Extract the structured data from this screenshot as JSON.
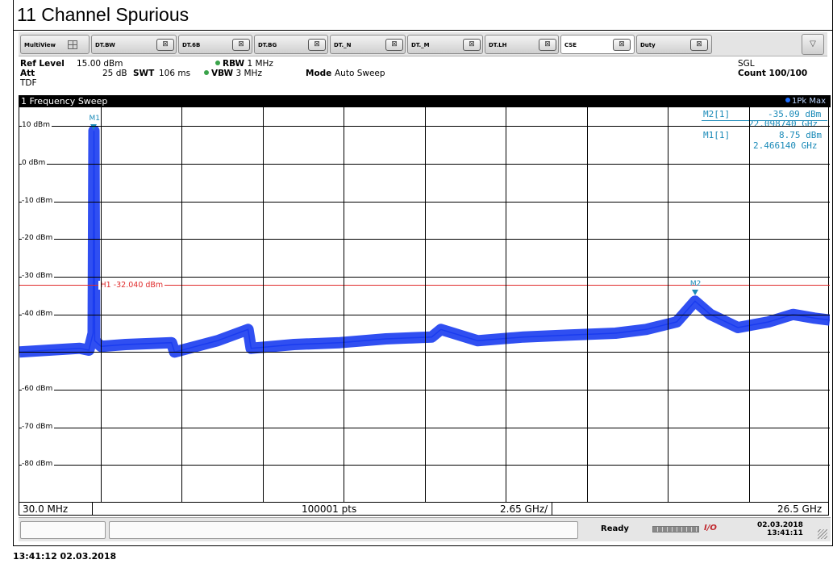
{
  "document": {
    "title": "11 Channel Spurious"
  },
  "tabs": [
    {
      "label": "MultiView",
      "active": false
    },
    {
      "label": "DT.BW",
      "active": false
    },
    {
      "label": "DT.6B",
      "active": false
    },
    {
      "label": "DT.BG",
      "active": false
    },
    {
      "label": "DT._N",
      "active": false
    },
    {
      "label": "DT._M",
      "active": false
    },
    {
      "label": "DT.LH",
      "active": false
    },
    {
      "label": "CSE",
      "active": true
    },
    {
      "label": "Duty",
      "active": false
    }
  ],
  "icons": {
    "tab_close": "close-x-icon",
    "dropdown": "chevron-down-icon",
    "multiview": "grid-layout-icon"
  },
  "glyphs": {
    "close": "⊠",
    "dropdown": "▽"
  },
  "settings": {
    "ref_level_label": "Ref Level",
    "ref_level_value": "15.00 dBm",
    "att_label": "Att",
    "att_value": "25 dB",
    "tdf_label": "TDF",
    "rbw_label": "RBW",
    "rbw_value": "1 MHz",
    "swt_label": "SWT",
    "swt_value": "106 ms",
    "vbw_label": "VBW",
    "vbw_value": "3 MHz",
    "mode_label": "Mode",
    "mode_value": "Auto Sweep",
    "sgl_label": "SGL",
    "count_label": "Count",
    "count_value": "100/100"
  },
  "window": {
    "title": "1 Frequency Sweep",
    "trace_label": "1Pk Max"
  },
  "markers": {
    "m2_label": "M2[1]",
    "m2_level": "-35.09 dBm",
    "m2_freq": "22.098740 GHz",
    "m1_label": "M1[1]",
    "m1_level": "8.75 dBm",
    "m1_freq": "2.466140 GHz",
    "m1_tag": "M1",
    "m2_tag": "M2"
  },
  "limit_line": {
    "label": "H1 -32.040 dBm",
    "level_dbm": -32.04,
    "color": "#e02b2b"
  },
  "chart_data": {
    "type": "line",
    "x_unit": "GHz",
    "y_unit": "dBm",
    "xlim": [
      0.03,
      26.5
    ],
    "ylim": [
      -90,
      15
    ],
    "y_ticks": [
      10,
      0,
      -10,
      -20,
      -30,
      -40,
      -50,
      -60,
      -70,
      -80
    ],
    "y_tick_labels": [
      "10 dBm",
      "0 dBm",
      "-10 dBm",
      "-20 dBm",
      "-30 dBm",
      "-40 dBm",
      "",
      "-60 dBm",
      "-70 dBm",
      "-80 dBm"
    ],
    "grid": true,
    "trace_color": "#1a3cf0",
    "series": [
      {
        "x": [
          0.03,
          1.0,
          2.0,
          2.3,
          2.44,
          2.466,
          2.49,
          2.7,
          3.5,
          5.0,
          5.1,
          6.5,
          7.5,
          7.6,
          9.0,
          10.5,
          12.0,
          13.5,
          13.8,
          15.0,
          16.5,
          18.0,
          19.5,
          20.5,
          21.5,
          22.1,
          22.6,
          23.5,
          24.5,
          25.3,
          26.0,
          26.5
        ],
        "y": [
          -50.0,
          -49.5,
          -49.0,
          -49.5,
          -45.0,
          8.75,
          -47.0,
          -48.5,
          -48.0,
          -47.5,
          -50.0,
          -47.0,
          -44.0,
          -49.0,
          -48.0,
          -47.5,
          -46.5,
          -46.0,
          -44.0,
          -47.0,
          -46.0,
          -45.5,
          -45.0,
          -44.0,
          -42.0,
          -36.5,
          -40.0,
          -43.5,
          -42.0,
          -40.0,
          -41.0,
          -41.5
        ]
      }
    ],
    "markers": [
      {
        "name": "M1",
        "x": 2.46614,
        "y": 8.75
      },
      {
        "name": "M2",
        "x": 22.09874,
        "y": -35.09
      }
    ]
  },
  "axis_footer": {
    "start": "30.0 MHz",
    "points": "100001 pts",
    "span": "2.65 GHz/",
    "stop": "26.5 GHz"
  },
  "status": {
    "ready": "Ready",
    "io": "I/O",
    "date": "02.03.2018",
    "time": "13:41:11"
  },
  "bottom_stamp": "13:41:12  02.03.2018"
}
